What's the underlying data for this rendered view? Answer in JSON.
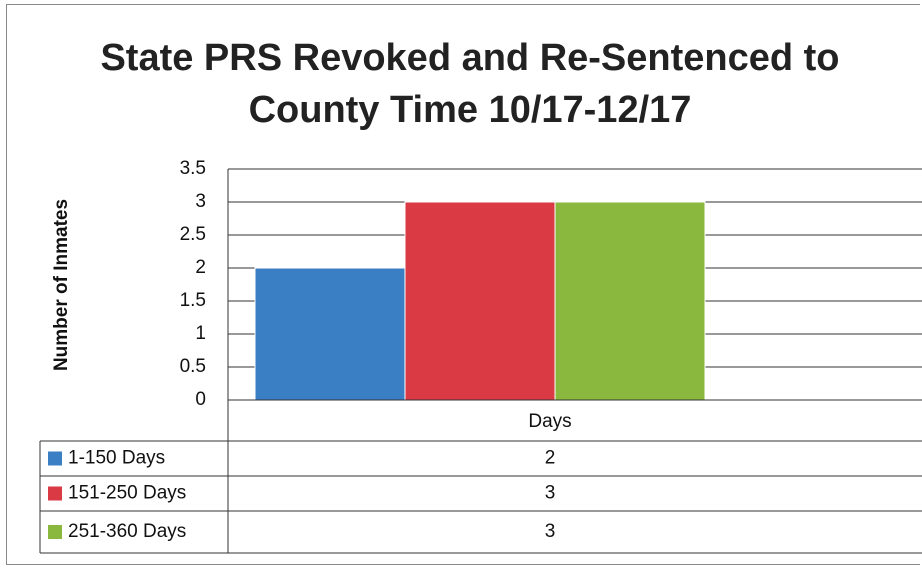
{
  "chart_data": {
    "type": "bar",
    "title": "State PRS Revoked and Re-Sentenced to County Time 10/17-12/17",
    "y_label": "Number of Inmates",
    "categories": [
      "Days"
    ],
    "series": [
      {
        "name": "1-150 Days",
        "color": "#3a7fc4",
        "values": [
          2
        ]
      },
      {
        "name": "151-250 Days",
        "color": "#d93a44",
        "values": [
          3
        ]
      },
      {
        "name": "251-360 Days",
        "color": "#8ab83e",
        "values": [
          3
        ]
      }
    ],
    "ylim": [
      0,
      3.5
    ],
    "yticks": [
      0,
      0.5,
      1,
      1.5,
      2,
      2.5,
      3,
      3.5
    ],
    "grid": true,
    "legend": "data-table"
  }
}
